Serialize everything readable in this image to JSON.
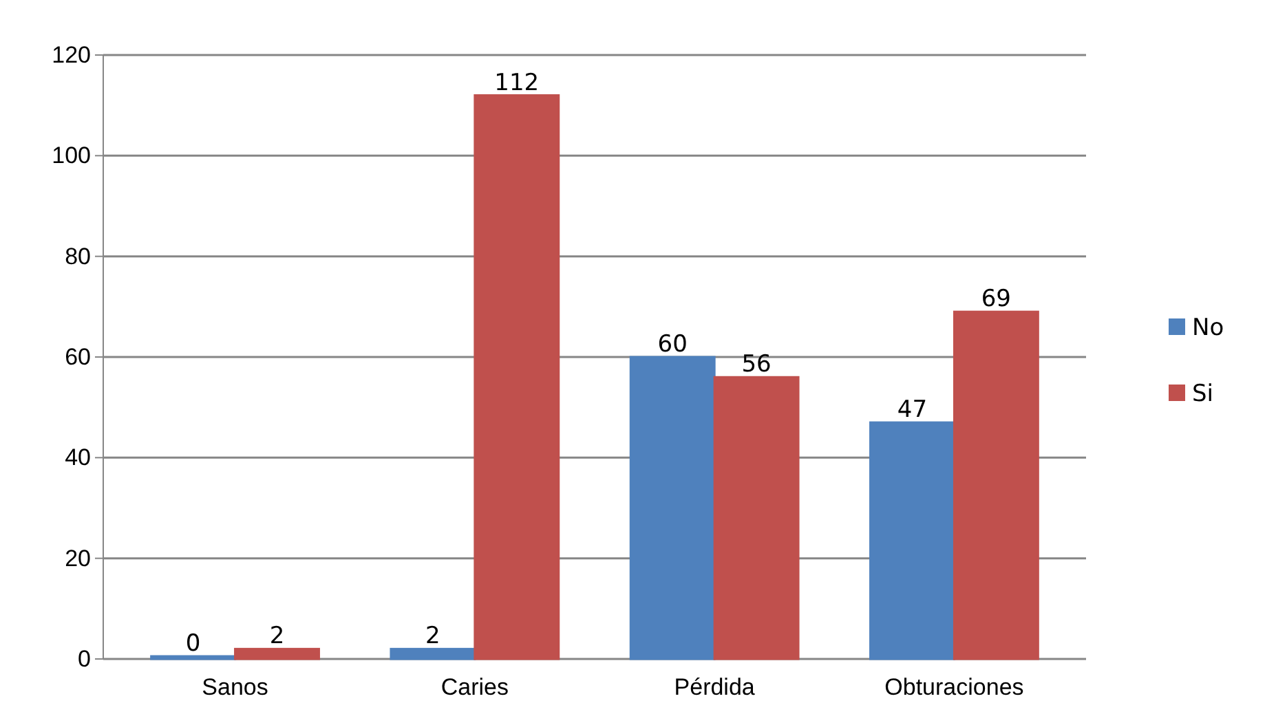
{
  "chart_data": {
    "type": "bar",
    "categories": [
      "Sanos",
      "Caries",
      "Pérdida",
      "Obturaciones"
    ],
    "series": [
      {
        "name": "No",
        "color": "#4f81bd",
        "values": [
          0,
          2,
          60,
          47
        ]
      },
      {
        "name": "Si",
        "color": "#c0504d",
        "values": [
          2,
          112,
          56,
          69
        ]
      }
    ],
    "ylim": [
      0,
      120
    ],
    "yticks": [
      0,
      20,
      40,
      60,
      80,
      100,
      120
    ],
    "grid": "y",
    "legend": "right",
    "data_labels": true
  }
}
